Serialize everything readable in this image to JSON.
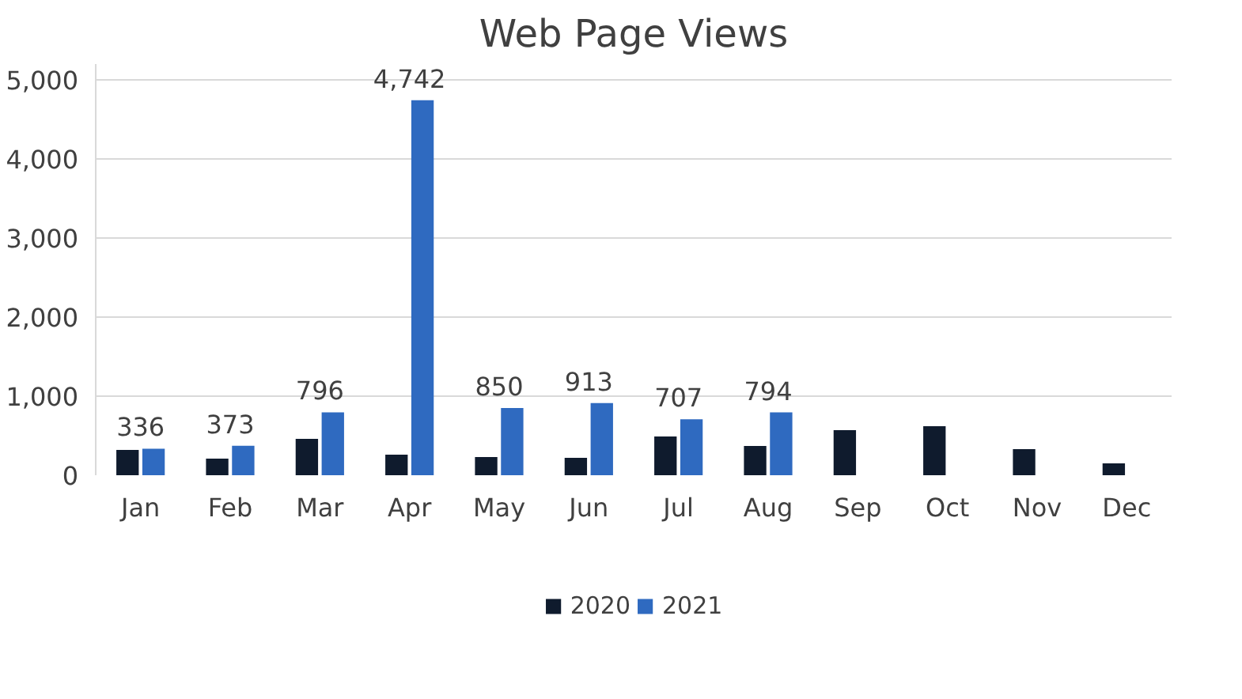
{
  "chart_data": {
    "type": "bar",
    "title": "Web Page Views",
    "categories": [
      "Jan",
      "Feb",
      "Mar",
      "Apr",
      "May",
      "Jun",
      "Jul",
      "Aug",
      "Sep",
      "Oct",
      "Nov",
      "Dec"
    ],
    "series": [
      {
        "name": "2020",
        "color": "#0f1b2d",
        "values": [
          320,
          210,
          460,
          260,
          230,
          220,
          490,
          370,
          570,
          620,
          330,
          150
        ]
      },
      {
        "name": "2021",
        "color": "#2f6ac0",
        "values": [
          336,
          373,
          796,
          4742,
          850,
          913,
          707,
          794,
          null,
          null,
          null,
          null
        ],
        "value_labels": [
          "336",
          "373",
          "796",
          "4,742",
          "850",
          "913",
          "707",
          "794",
          null,
          null,
          null,
          null
        ]
      }
    ],
    "ylim": [
      0,
      5200
    ],
    "yticks": [
      {
        "value": 0,
        "label": "0"
      },
      {
        "value": 1000,
        "label": "1,000"
      },
      {
        "value": 2000,
        "label": "2,000"
      },
      {
        "value": 3000,
        "label": "3,000"
      },
      {
        "value": 4000,
        "label": "4,000"
      },
      {
        "value": 5000,
        "label": "5,000"
      }
    ],
    "grid": "y",
    "legend": "bottom"
  }
}
